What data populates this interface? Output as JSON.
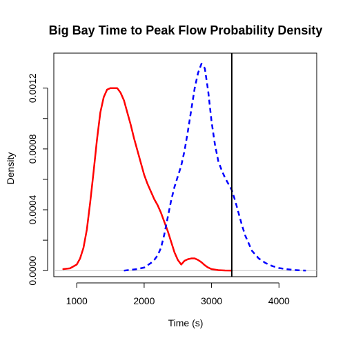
{
  "chart_data": {
    "type": "line",
    "title": "Big Bay Time to Peak Flow Probability Density",
    "xlabel": "Time (s)",
    "ylabel": "Density",
    "xlim": [
      660,
      4560
    ],
    "ylim": [
      -4e-05,
      0.00143
    ],
    "x_ticks": [
      1000,
      2000,
      3000,
      4000
    ],
    "x_tick_labels": [
      "1000",
      "2000",
      "3000",
      "4000"
    ],
    "y_ticks": [
      0,
      0.0002,
      0.0004,
      0.0006,
      0.0008,
      0.001,
      0.0012
    ],
    "y_tick_labels": [
      "0.0000",
      "",
      "0.0004",
      "",
      "0.0008",
      "",
      "0.0012"
    ],
    "baseline": {
      "y": 0,
      "color": "#bebebe"
    },
    "vline": {
      "x": 3300,
      "color": "#000000"
    },
    "series": [
      {
        "color": "#ff0000",
        "dash": "solid",
        "x": [
          800,
          900,
          1000,
          1050,
          1100,
          1150,
          1200,
          1250,
          1300,
          1350,
          1400,
          1450,
          1500,
          1550,
          1600,
          1650,
          1700,
          1750,
          1800,
          1850,
          1900,
          1950,
          2000,
          2050,
          2100,
          2150,
          2200,
          2250,
          2300,
          2350,
          2400,
          2450,
          2500,
          2550,
          2600,
          2650,
          2700,
          2750,
          2800,
          2850,
          2900,
          2950,
          3000,
          3100,
          3200,
          3300
        ],
        "y": [
          1e-05,
          1.5e-05,
          4e-05,
          8e-05,
          0.00015,
          0.00027,
          0.00045,
          0.00065,
          0.00086,
          0.00104,
          0.00114,
          0.00119,
          0.0012,
          0.0012,
          0.0012,
          0.00117,
          0.00112,
          0.00104,
          0.00096,
          0.00087,
          0.00079,
          0.00071,
          0.00063,
          0.00057,
          0.00052,
          0.00047,
          0.00043,
          0.00038,
          0.00032,
          0.00026,
          0.00019,
          0.00012,
          7e-05,
          4e-05,
          6.5e-05,
          7.5e-05,
          8e-05,
          8e-05,
          7e-05,
          5.5e-05,
          3.5e-05,
          2e-05,
          1e-05,
          3e-06,
          1e-06,
          0
        ]
      },
      {
        "color": "#0000ff",
        "dash": "dashed",
        "x": [
          1700,
          1800,
          1900,
          2000,
          2050,
          2100,
          2150,
          2200,
          2250,
          2300,
          2350,
          2400,
          2450,
          2500,
          2550,
          2600,
          2650,
          2700,
          2750,
          2800,
          2850,
          2900,
          2950,
          3000,
          3050,
          3100,
          3150,
          3200,
          3250,
          3300,
          3350,
          3400,
          3450,
          3500,
          3600,
          3700,
          3800,
          3900,
          4000,
          4100,
          4200,
          4300,
          4400
        ],
        "y": [
          0,
          5e-06,
          1e-05,
          2e-05,
          3.5e-05,
          5e-05,
          7e-05,
          0.0001,
          0.00015,
          0.00024,
          0.00035,
          0.00046,
          0.00055,
          0.00062,
          0.00069,
          0.00079,
          0.00092,
          0.00106,
          0.0012,
          0.0013,
          0.00136,
          0.00133,
          0.00118,
          0.00098,
          0.00083,
          0.00072,
          0.00066,
          0.00061,
          0.00057,
          0.00053,
          0.00046,
          0.00038,
          0.0003,
          0.00023,
          0.00013,
          8e-05,
          5e-05,
          3e-05,
          1.7e-05,
          1e-05,
          5e-06,
          2e-06,
          0
        ]
      }
    ]
  }
}
